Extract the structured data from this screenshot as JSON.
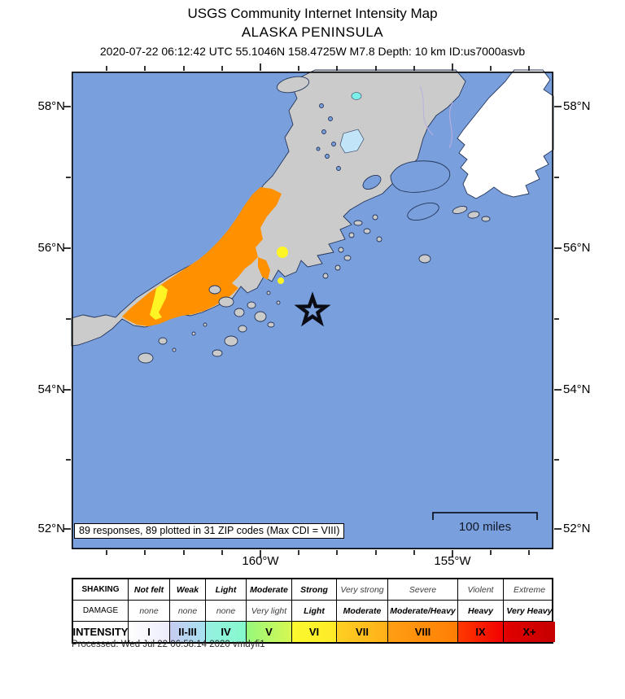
{
  "header": {
    "title": "USGS Community Internet Intensity Map",
    "region": "ALASKA PENINSULA",
    "event_line": "2020-07-22 06:12:42 UTC 55.1046N 158.4725W M7.8 Depth: 10 km ID:us7000asvb"
  },
  "map": {
    "responses_note": "89 responses, 89 plotted in 31 ZIP codes (Max CDI = VIII)",
    "scale_label": "100 miles",
    "lat_labels": [
      "58°N",
      "56°N",
      "54°N",
      "52°N"
    ],
    "lon_labels": [
      "160°W",
      "155°W"
    ],
    "epicenter_symbol": "star",
    "colors": {
      "ocean": "#7A9FDD",
      "land": "#CBCBCB",
      "no_data_land": "#FFFFFF",
      "coastline": "#24365A",
      "intensity_viii_region": "#FF9100",
      "intensity_vi_region": "#FFF424",
      "intensity_iv_region": "#7EEFE8",
      "intensity_ii_iii_region": "#C2E4F8"
    }
  },
  "legend": {
    "row_headers": [
      "SHAKING",
      "DAMAGE",
      "INTENSITY"
    ],
    "shaking": [
      "Not felt",
      "Weak",
      "Light",
      "Moderate",
      "Strong",
      "Very strong",
      "Severe",
      "Violent",
      "Extreme"
    ],
    "damage": [
      "none",
      "none",
      "none",
      "Very light",
      "Light",
      "Moderate",
      "Moderate/Heavy",
      "Heavy",
      "Very Heavy"
    ],
    "intensity": [
      "I",
      "II-III",
      "IV",
      "V",
      "VI",
      "VII",
      "VIII",
      "IX",
      "X+"
    ],
    "intensity_gradients": [
      [
        "#FFFFFF",
        "#ECECFB"
      ],
      [
        "#C8CCF3",
        "#A6E1EF"
      ],
      [
        "#95F0E1",
        "#85F9CC"
      ],
      [
        "#97F87D",
        "#D6F751"
      ],
      [
        "#FAFA2E",
        "#FFE928"
      ],
      [
        "#FFD023",
        "#FFAF18"
      ],
      [
        "#FF9F13",
        "#FF7D04"
      ],
      [
        "#FF3A00",
        "#F20000"
      ],
      [
        "#E30000",
        "#C50000"
      ]
    ]
  },
  "footer": {
    "processed": "Processed: Wed Jul 22 06:58:14 2020 vmdyfi1"
  }
}
